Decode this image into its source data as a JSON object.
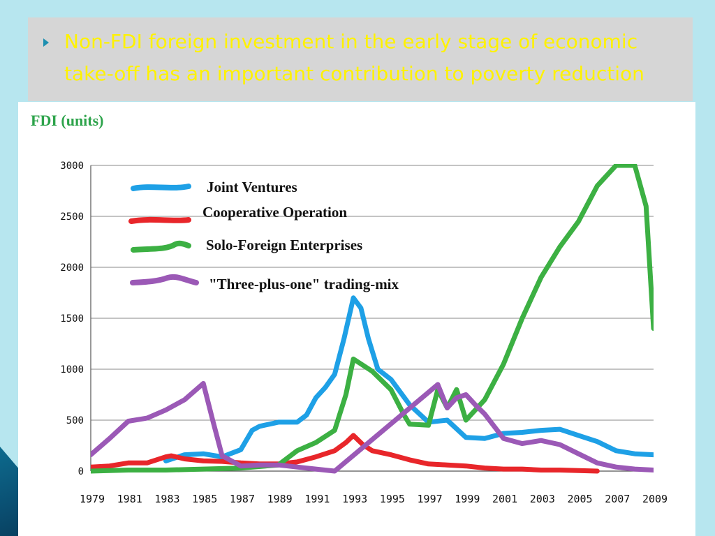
{
  "slide": {
    "bullet_text": "Non-FDI foreign investment in the early stage of economic take-off has an important contribution to poverty reduction"
  },
  "chart_data": {
    "type": "line",
    "title": "FDI (units)",
    "xlabel": "",
    "ylabel": "",
    "ylim": [
      0,
      3000
    ],
    "xlim": [
      1979,
      2009
    ],
    "grid": true,
    "legend_position": "top-left",
    "y_ticks": [
      "0",
      "500",
      "1000",
      "1500",
      "2000",
      "2500",
      "3000"
    ],
    "x_ticks": [
      "1979",
      "1981",
      "1983",
      "1985",
      "1987",
      "1989",
      "1991",
      "1993",
      "1995",
      "1997",
      "1999",
      "2001",
      "2003",
      "2005",
      "2007",
      "2009"
    ],
    "series": [
      {
        "name": "Joint Ventures",
        "color": "#1ea0e6",
        "x": [
          1983,
          1984,
          1985,
          1986,
          1987,
          1987.6,
          1988,
          1989,
          1990,
          1990.5,
          1991,
          1991.5,
          1992,
          1992.5,
          1993,
          1993.4,
          1993.8,
          1994.3,
          1995,
          1996,
          1997,
          1998,
          1999,
          2000,
          2001,
          2002,
          2003,
          2004,
          2005,
          2006,
          2007,
          2008,
          2009
        ],
        "values": [
          100,
          160,
          170,
          140,
          210,
          400,
          440,
          480,
          480,
          550,
          720,
          820,
          950,
          1300,
          1700,
          1600,
          1300,
          1000,
          900,
          650,
          480,
          500,
          330,
          320,
          370,
          380,
          400,
          410,
          350,
          290,
          200,
          170,
          160
        ]
      },
      {
        "name": "Cooperative Operation",
        "color": "#e8262a",
        "x": [
          1979,
          1980,
          1981,
          1982,
          1983,
          1983.3,
          1984,
          1985,
          1986,
          1987,
          1988,
          1989,
          1990,
          1991,
          1992,
          1992.6,
          1993,
          1993.5,
          1994,
          1995,
          1996,
          1997,
          1998,
          1999,
          2000,
          2001,
          2002,
          2003,
          2004,
          2005,
          2006
        ],
        "values": [
          40,
          50,
          80,
          80,
          140,
          150,
          120,
          100,
          95,
          80,
          70,
          70,
          90,
          140,
          200,
          280,
          350,
          260,
          200,
          160,
          110,
          70,
          60,
          50,
          30,
          20,
          20,
          10,
          10,
          5,
          0
        ]
      },
      {
        "name": "Solo-Foreign Enterprises",
        "color": "#3cb043",
        "x": [
          1979,
          1981,
          1983,
          1985,
          1987,
          1989,
          1990,
          1991,
          1992,
          1992.6,
          1993,
          1994,
          1995,
          1995.7,
          1996,
          1997,
          1997.5,
          1998,
          1998.5,
          1999,
          2000,
          2001,
          2002,
          2003,
          2004,
          2005,
          2006,
          2007,
          2008,
          2008.6,
          2009
        ],
        "values": [
          0,
          10,
          10,
          20,
          30,
          60,
          200,
          280,
          400,
          750,
          1100,
          980,
          800,
          550,
          460,
          450,
          800,
          620,
          800,
          500,
          700,
          1050,
          1500,
          1900,
          2200,
          2450,
          2800,
          3000,
          3000,
          2600,
          1400
        ]
      },
      {
        "name": "\"Three-plus-one\" trading-mix",
        "color": "#9b59b6",
        "x": [
          1979,
          1980,
          1981,
          1982,
          1983,
          1984,
          1985,
          1985.5,
          1986,
          1987,
          1988,
          1989,
          1990,
          1991,
          1992,
          1997.5,
          1998,
          1998.5,
          1999,
          1999.5,
          2000,
          2001,
          2002,
          2003,
          2004,
          2005,
          2006,
          2007,
          2008,
          2009
        ],
        "values": [
          160,
          320,
          490,
          520,
          600,
          700,
          860,
          500,
          150,
          50,
          60,
          60,
          40,
          20,
          0,
          850,
          620,
          720,
          750,
          650,
          560,
          320,
          270,
          300,
          260,
          170,
          80,
          40,
          20,
          10
        ]
      }
    ]
  }
}
